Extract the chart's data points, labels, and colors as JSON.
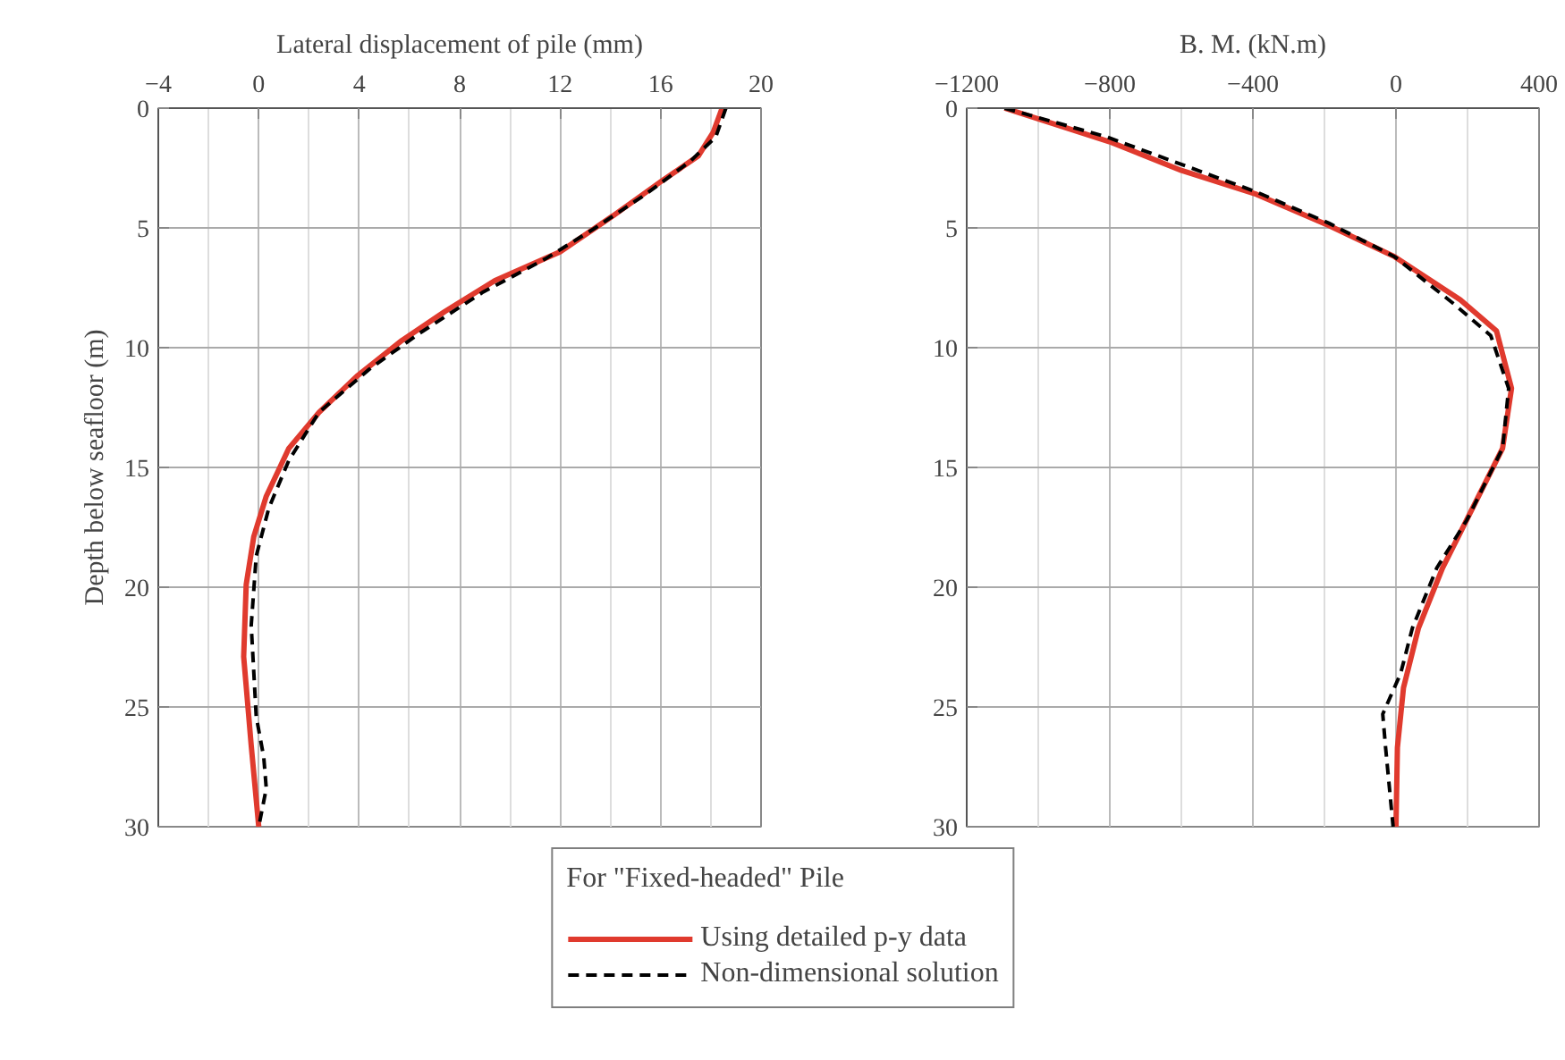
{
  "chart_data": [
    {
      "type": "line",
      "xlabel": "Lateral displacement of pile (mm)",
      "ylabel": "Depth below seafloor (m)",
      "xlim": [
        -4,
        20
      ],
      "xticks": [
        -4,
        0,
        4,
        8,
        12,
        16,
        20
      ],
      "ylim": [
        30,
        0
      ],
      "yticks": [
        0,
        5,
        10,
        15,
        20,
        25,
        30
      ],
      "grid": true,
      "legend": "bottom",
      "legend_title": "For \"Fixed-headed\" Pile",
      "series": [
        {
          "name": "Using detailed p-y data",
          "color": "#e03a2e",
          "line_style": "solid",
          "x": [
            18.45,
            18.1,
            17.5,
            16.1,
            14.1,
            12.0,
            9.4,
            7.4,
            5.7,
            3.9,
            2.4,
            1.2,
            0.3,
            -0.2,
            -0.5,
            -0.6,
            -0.3,
            0
          ],
          "values": [
            0,
            1,
            2,
            3,
            4.5,
            6,
            7.2,
            8.5,
            9.7,
            11.2,
            12.7,
            14.2,
            16.2,
            17.9,
            19.9,
            22.9,
            26.6,
            30
          ]
        },
        {
          "name": "Non-dimensional solution",
          "color": "#000000",
          "line_style": "dashed",
          "x": [
            18.6,
            18.2,
            17.2,
            15.4,
            13.4,
            11.4,
            8.9,
            6.4,
            4.4,
            2.4,
            1.2,
            0.4,
            -0.1,
            -0.3,
            -0.1,
            0.2,
            0.3,
            0
          ],
          "values": [
            0,
            1.2,
            2.2,
            3.6,
            5,
            6.3,
            7.7,
            9.4,
            10.9,
            12.7,
            14.7,
            16.7,
            18.7,
            21.6,
            25.4,
            27.1,
            28.4,
            30
          ]
        }
      ]
    },
    {
      "type": "line",
      "xlabel": "B. M. (kN.m)",
      "xlim": [
        -1200,
        400
      ],
      "xticks": [
        -1200,
        -800,
        -400,
        0,
        400
      ],
      "ylim": [
        30,
        0
      ],
      "yticks": [
        0,
        5,
        10,
        15,
        20,
        25,
        30
      ],
      "grid": true,
      "series": [
        {
          "color": "#e03a2e",
          "line_style": "solid",
          "x": [
            -1094,
            -801,
            -600,
            -390,
            -188,
            -4,
            180,
            281,
            323,
            298,
            214,
            130,
            63,
            21,
            4,
            0
          ],
          "values": [
            0,
            1.4,
            2.6,
            3.6,
            4.9,
            6.2,
            8,
            9.3,
            11.7,
            14.2,
            16.7,
            19.2,
            21.7,
            24.2,
            26.7,
            30
          ]
        },
        {
          "color": "#000000",
          "line_style": "dashed",
          "x": [
            -1094,
            -809,
            -390,
            -188,
            -4,
            164,
            265,
            315,
            298,
            198,
            114,
            46,
            13,
            -37,
            -29,
            -8
          ],
          "values": [
            0,
            1.2,
            3.5,
            4.8,
            6.2,
            8.2,
            9.5,
            11.7,
            14.2,
            17.2,
            19.2,
            21.7,
            23.6,
            25.3,
            26.7,
            30
          ]
        }
      ]
    }
  ]
}
